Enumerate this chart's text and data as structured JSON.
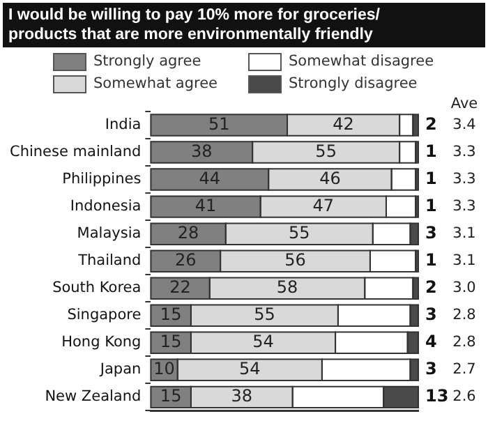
{
  "chart_data": {
    "type": "bar",
    "orientation": "horizontal",
    "stacked": true,
    "title": "I would be willing to pay 10% more for groceries/\nproducts that are more environmentally friendly",
    "categories": [
      "India",
      "Chinese mainland",
      "Philippines",
      "Indonesia",
      "Malaysia",
      "Thailand",
      "South Korea",
      "Singapore",
      "Hong Kong",
      "Japan",
      "New Zealand"
    ],
    "series": [
      {
        "name": "Strongly agree",
        "color": "#808080",
        "values": [
          51,
          38,
          44,
          41,
          28,
          26,
          22,
          15,
          15,
          10,
          15
        ],
        "value_labels": [
          "51",
          "38",
          "44",
          "41",
          "28",
          "26",
          "22",
          "15",
          "15",
          "10",
          "15"
        ]
      },
      {
        "name": "Somewhat agree",
        "color": "#d9d9d9",
        "values": [
          42,
          55,
          46,
          47,
          55,
          56,
          58,
          55,
          54,
          54,
          38
        ],
        "value_labels": [
          "42",
          "55",
          "46",
          "47",
          "55",
          "56",
          "58",
          "55",
          "54",
          "54",
          "38"
        ]
      },
      {
        "name": "Somewhat disagree",
        "color": "#ffffff",
        "values": [
          5,
          6,
          9,
          11,
          14,
          17,
          18,
          27,
          27,
          33,
          34
        ]
      },
      {
        "name": "Strongly disagree",
        "color": "#4a4a4a",
        "values": [
          2,
          1,
          1,
          1,
          3,
          1,
          2,
          3,
          4,
          3,
          13
        ],
        "value_labels": [
          "2",
          "1",
          "1",
          "1",
          "3",
          "1",
          "2",
          "3",
          "4",
          "3",
          "13"
        ]
      }
    ],
    "xlim": [
      0,
      100
    ],
    "tick_labels": "y",
    "grid": false,
    "legend": "top",
    "annotations": [
      "Ave",
      "3.4",
      "3.3",
      "3.3",
      "3.3",
      "3.1",
      "3.1",
      "3.0",
      "2.8",
      "2.8",
      "2.7",
      "2.6"
    ]
  }
}
